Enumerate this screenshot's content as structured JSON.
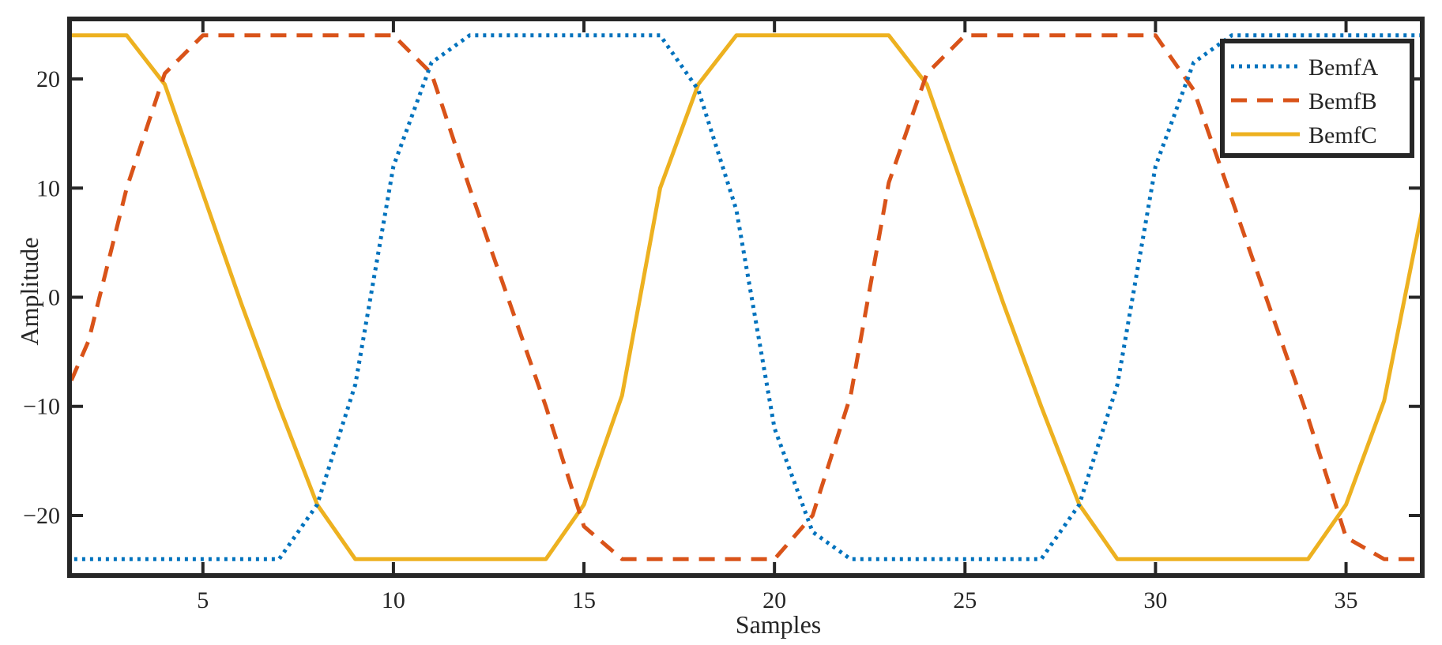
{
  "chart_data": {
    "type": "line",
    "title": "",
    "xlabel": "Samples",
    "ylabel": "Amplitude",
    "xlim": [
      1.5,
      37
    ],
    "ylim": [
      -25.5,
      25.5
    ],
    "xticks": [
      5,
      10,
      15,
      20,
      25,
      30,
      35
    ],
    "yticks": [
      20,
      10,
      0,
      -10,
      -20
    ],
    "ytick_labels": [
      "20",
      "10",
      "0",
      "−10",
      "−20"
    ],
    "legend_position": "top-right",
    "grid": false,
    "x": [
      1,
      2,
      3,
      4,
      5,
      6,
      7,
      8,
      9,
      10,
      11,
      12,
      13,
      14,
      15,
      16,
      17,
      18,
      19,
      20,
      21,
      22,
      23,
      24,
      25,
      26,
      27,
      28,
      29,
      30,
      31,
      32,
      33,
      34,
      35,
      36,
      37
    ],
    "series": [
      {
        "name": "BemfA",
        "color": "#0072BD",
        "dash": "dotted",
        "values": [
          -24,
          -24,
          -24,
          -24,
          -24,
          -24,
          -24,
          -19,
          -8,
          12,
          21.5,
          24,
          24,
          24,
          24,
          24,
          24,
          19,
          8,
          -12,
          -21.5,
          -24,
          -24,
          -24,
          -24,
          -24,
          -24,
          -19,
          -8,
          12,
          21.5,
          24,
          24,
          24,
          24,
          24,
          24
        ]
      },
      {
        "name": "BemfB",
        "color": "#D95319",
        "dash": "dashed",
        "values": [
          -12,
          -4,
          10,
          20.5,
          24,
          24,
          24,
          24,
          24,
          24,
          20.5,
          10,
          0,
          -10,
          -21,
          -24,
          -24,
          -24,
          -24,
          -24,
          -20,
          -9,
          10.5,
          20.5,
          24,
          24,
          24,
          24,
          24,
          24,
          19,
          9,
          -1,
          -11,
          -22,
          -24,
          -24
        ]
      },
      {
        "name": "BemfC",
        "color": "#EDB120",
        "dash": "solid",
        "values": [
          24,
          24,
          24,
          19.5,
          9.5,
          -0.5,
          -10,
          -19,
          -24,
          -24,
          -24,
          -24,
          -24,
          -24,
          -19,
          -9,
          10,
          19.5,
          24,
          24,
          24,
          24,
          24,
          19.5,
          9.5,
          -0.5,
          -10,
          -19,
          -24,
          -24,
          -24,
          -24,
          -24,
          -24,
          -19,
          -9.5,
          8
        ]
      }
    ]
  }
}
